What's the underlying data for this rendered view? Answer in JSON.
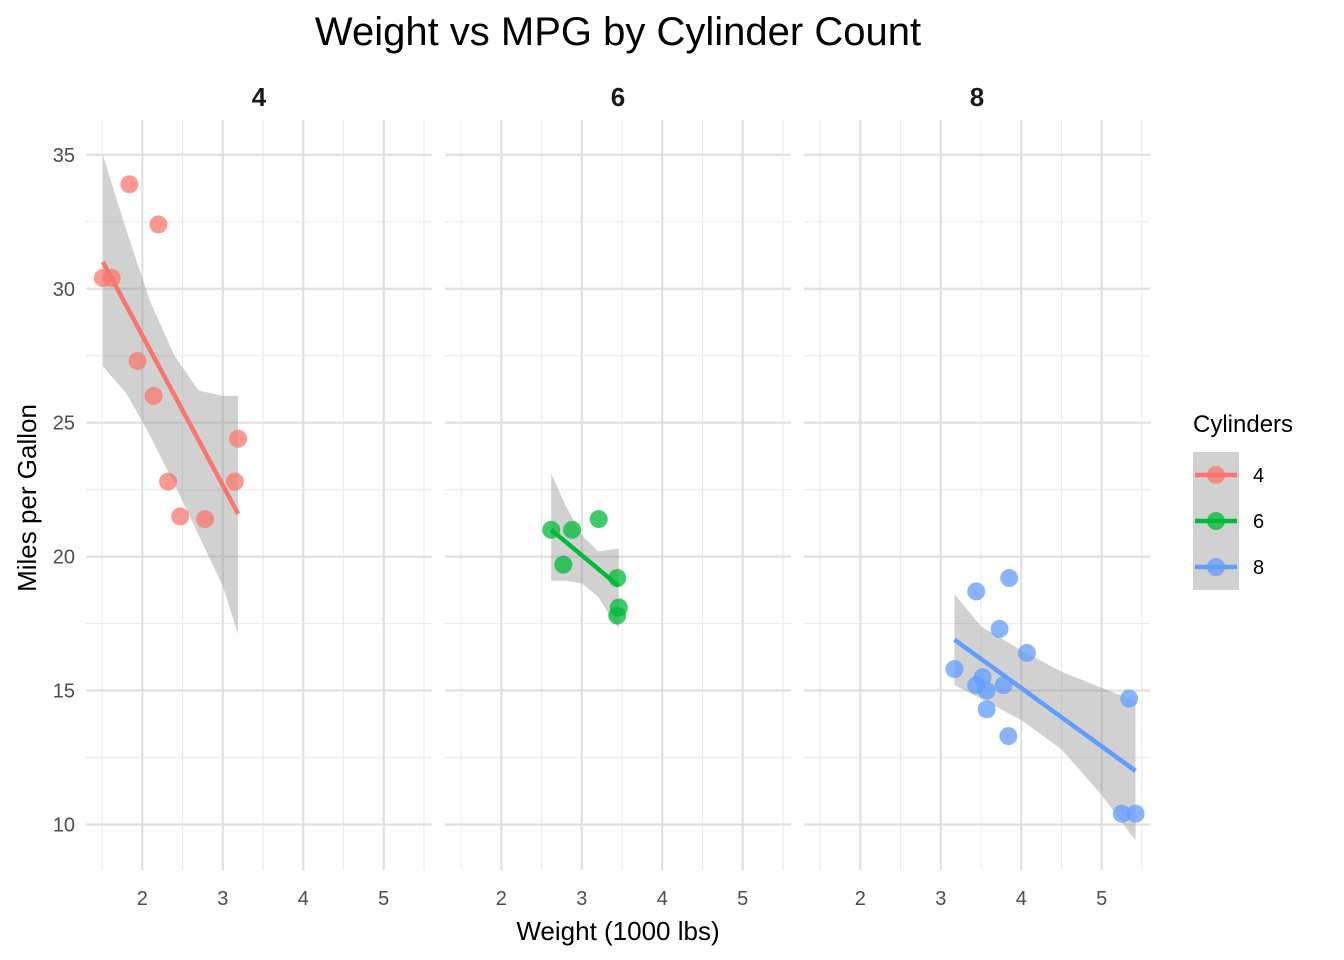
{
  "chart_data": {
    "type": "scatter",
    "title": "Weight vs MPG by Cylinder Count",
    "xlabel": "Weight (1000 lbs)",
    "ylabel": "Miles per Gallon",
    "xlim": [
      1.3,
      5.6
    ],
    "ylim": [
      8.3,
      36.3
    ],
    "x_ticks": [
      2,
      3,
      4,
      5
    ],
    "y_ticks": [
      10,
      15,
      20,
      25,
      30,
      35
    ],
    "grid": true,
    "legend": {
      "title": "Cylinders",
      "position": "right",
      "entries": [
        "4",
        "6",
        "8"
      ]
    },
    "facets": [
      {
        "label": "4",
        "color": "#F8766D",
        "points": [
          [
            1.51,
            30.4
          ],
          [
            1.62,
            30.4
          ],
          [
            1.84,
            33.9
          ],
          [
            1.94,
            27.3
          ],
          [
            2.14,
            26.0
          ],
          [
            2.2,
            32.4
          ],
          [
            2.32,
            22.8
          ],
          [
            2.47,
            21.5
          ],
          [
            2.78,
            21.4
          ],
          [
            3.15,
            22.8
          ],
          [
            3.19,
            24.4
          ]
        ],
        "fit": {
          "x": [
            1.51,
            3.19
          ],
          "y": [
            31.0,
            21.6
          ]
        },
        "band": {
          "x": [
            1.51,
            1.8,
            2.1,
            2.4,
            2.7,
            3.0,
            3.19
          ],
          "upper": [
            35.0,
            32.2,
            29.5,
            27.5,
            26.2,
            26.0,
            26.0
          ],
          "lower": [
            27.1,
            26.1,
            24.5,
            22.7,
            20.8,
            18.9,
            17.1
          ]
        }
      },
      {
        "label": "6",
        "color": "#00BA38",
        "points": [
          [
            2.62,
            21.0
          ],
          [
            2.77,
            19.7
          ],
          [
            2.88,
            21.0
          ],
          [
            3.21,
            21.4
          ],
          [
            3.44,
            19.2
          ],
          [
            3.44,
            17.8
          ],
          [
            3.46,
            18.1
          ]
        ],
        "fit": {
          "x": [
            2.62,
            3.46
          ],
          "y": [
            21.0,
            18.9
          ]
        },
        "band": {
          "x": [
            2.62,
            2.8,
            3.0,
            3.2,
            3.46
          ],
          "upper": [
            23.1,
            21.9,
            20.8,
            20.2,
            20.3
          ],
          "lower": [
            19.1,
            19.1,
            19.0,
            18.5,
            17.3
          ]
        }
      },
      {
        "label": "8",
        "color": "#619CFF",
        "points": [
          [
            3.17,
            15.8
          ],
          [
            3.44,
            18.7
          ],
          [
            3.44,
            15.2
          ],
          [
            3.52,
            15.5
          ],
          [
            3.57,
            15.0
          ],
          [
            3.57,
            14.3
          ],
          [
            3.73,
            17.3
          ],
          [
            3.78,
            15.2
          ],
          [
            3.84,
            13.3
          ],
          [
            3.85,
            19.2
          ],
          [
            4.07,
            16.4
          ],
          [
            5.25,
            10.4
          ],
          [
            5.34,
            14.7
          ],
          [
            5.42,
            10.4
          ]
        ],
        "fit": {
          "x": [
            3.17,
            5.42
          ],
          "y": [
            16.9,
            12.0
          ]
        },
        "band": {
          "x": [
            3.17,
            3.5,
            4.0,
            4.5,
            5.0,
            5.42
          ],
          "upper": [
            18.6,
            17.4,
            16.5,
            15.7,
            15.1,
            14.6
          ],
          "lower": [
            15.2,
            14.7,
            13.9,
            12.8,
            11.1,
            9.4
          ]
        }
      }
    ]
  }
}
